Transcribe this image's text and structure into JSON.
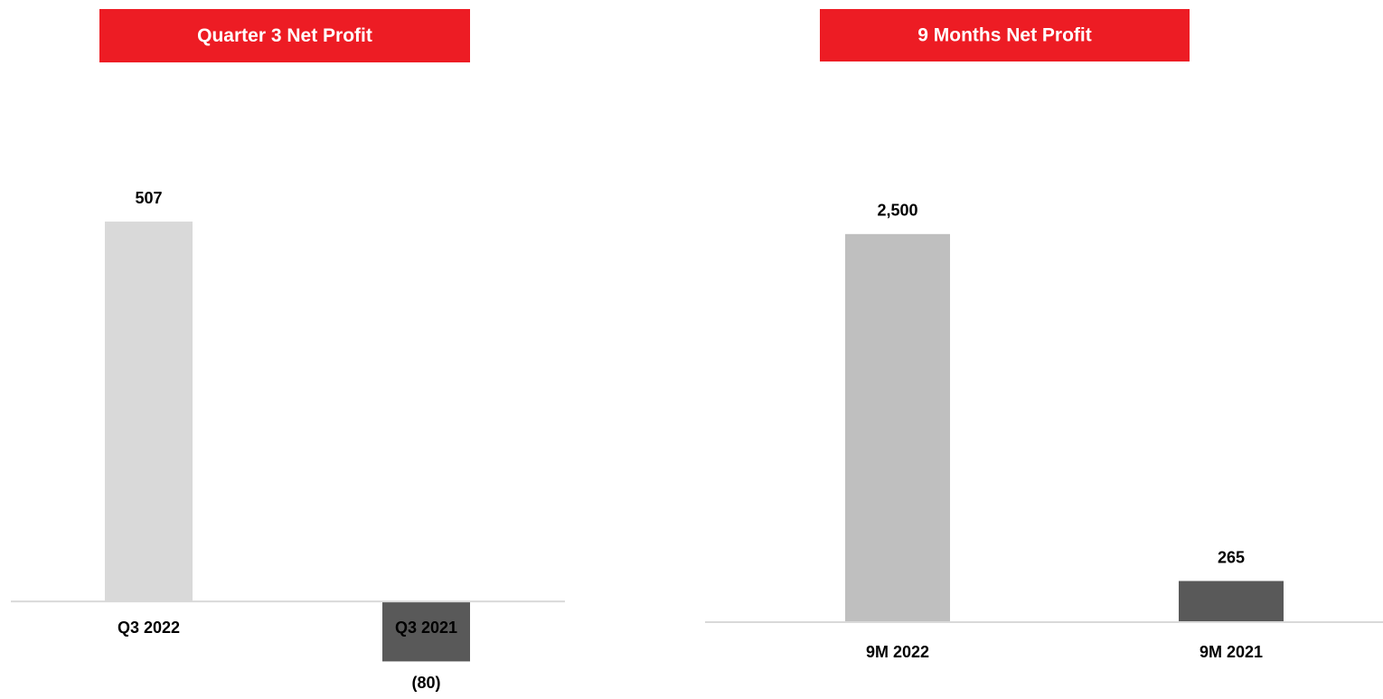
{
  "chart_data": [
    {
      "type": "bar",
      "title": "Quarter 3 Net Profit",
      "categories": [
        "Q3 2022",
        "Q3 2021"
      ],
      "values": [
        507,
        -80
      ],
      "value_labels": [
        "507",
        "(80)"
      ],
      "colors": [
        "#d9d9d9",
        "#595959"
      ],
      "ylim": [
        -100,
        600
      ]
    },
    {
      "type": "bar",
      "title": "9 Months Net Profit",
      "categories": [
        "9M 2022",
        "9M 2021"
      ],
      "values": [
        2500,
        265
      ],
      "value_labels": [
        "2,500",
        "265"
      ],
      "colors": [
        "#bfbfbf",
        "#595959"
      ],
      "ylim": [
        0,
        3000
      ]
    }
  ]
}
